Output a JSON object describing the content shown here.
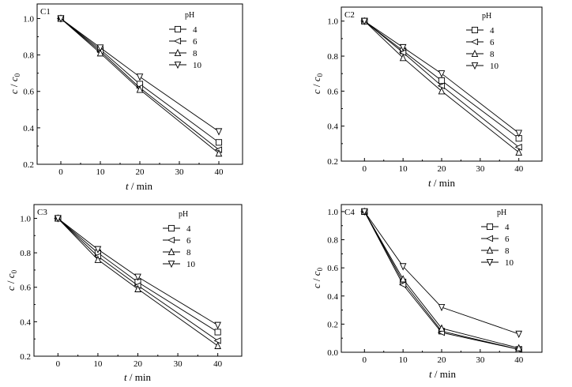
{
  "chart_data": [
    {
      "type": "line",
      "panel_label": "C1",
      "xlabel_var": "t",
      "xlabel_unit": " / min",
      "ylabel_var": "c",
      "ylabel_sep": " / ",
      "ylabel_var2": "c",
      "ylabel_sub": "0",
      "x": [
        0,
        10,
        20,
        40
      ],
      "xlim": [
        -6,
        46
      ],
      "ylim": [
        0.2,
        1.08
      ],
      "xticks": [
        "0",
        "10",
        "20",
        "30",
        "40"
      ],
      "yticks": [
        "0.2",
        "0.4",
        "0.6",
        "0.8",
        "1.0"
      ],
      "legend_title": "pH",
      "series": [
        {
          "name": "4",
          "marker": "square",
          "values": [
            1.0,
            0.83,
            0.64,
            0.32
          ]
        },
        {
          "name": "6",
          "marker": "triangle-left",
          "values": [
            1.0,
            0.82,
            0.62,
            0.28
          ]
        },
        {
          "name": "8",
          "marker": "triangle-up",
          "values": [
            1.0,
            0.81,
            0.61,
            0.26
          ]
        },
        {
          "name": "10",
          "marker": "triangle-down",
          "values": [
            1.0,
            0.84,
            0.68,
            0.38
          ]
        }
      ]
    },
    {
      "type": "line",
      "panel_label": "C2",
      "xlabel_var": "t",
      "xlabel_unit": " / min",
      "ylabel_var": "c",
      "ylabel_sep": " / ",
      "ylabel_var2": "c",
      "ylabel_sub": "0",
      "x": [
        0,
        10,
        20,
        40
      ],
      "xlim": [
        -6,
        46
      ],
      "ylim": [
        0.2,
        1.08
      ],
      "xticks": [
        "0",
        "10",
        "20",
        "30",
        "40"
      ],
      "yticks": [
        "0.2",
        "0.4",
        "0.6",
        "0.8",
        "1.0"
      ],
      "legend_title": "pH",
      "series": [
        {
          "name": "4",
          "marker": "square",
          "values": [
            1.0,
            0.83,
            0.66,
            0.33
          ]
        },
        {
          "name": "6",
          "marker": "triangle-left",
          "values": [
            1.0,
            0.82,
            0.63,
            0.28
          ]
        },
        {
          "name": "8",
          "marker": "triangle-up",
          "values": [
            1.0,
            0.79,
            0.6,
            0.25
          ]
        },
        {
          "name": "10",
          "marker": "triangle-down",
          "values": [
            1.0,
            0.85,
            0.7,
            0.36
          ]
        }
      ]
    },
    {
      "type": "line",
      "panel_label": "C3",
      "xlabel_var": "t",
      "xlabel_unit": " / min",
      "ylabel_var": "c",
      "ylabel_sep": " / ",
      "ylabel_var2": "c",
      "ylabel_sub": "0",
      "x": [
        0,
        10,
        20,
        40
      ],
      "xlim": [
        -6,
        46
      ],
      "ylim": [
        0.2,
        1.08
      ],
      "xticks": [
        "0",
        "10",
        "20",
        "30",
        "40"
      ],
      "yticks": [
        "0.2",
        "0.4",
        "0.6",
        "0.8",
        "1.0"
      ],
      "legend_title": "pH",
      "series": [
        {
          "name": "4",
          "marker": "square",
          "values": [
            1.0,
            0.8,
            0.63,
            0.34
          ]
        },
        {
          "name": "6",
          "marker": "triangle-left",
          "values": [
            1.0,
            0.78,
            0.61,
            0.29
          ]
        },
        {
          "name": "8",
          "marker": "triangle-up",
          "values": [
            1.0,
            0.76,
            0.59,
            0.26
          ]
        },
        {
          "name": "10",
          "marker": "triangle-down",
          "values": [
            1.0,
            0.82,
            0.66,
            0.38
          ]
        }
      ]
    },
    {
      "type": "line",
      "panel_label": "C4",
      "xlabel_var": "t",
      "xlabel_unit": " / min",
      "ylabel_var": "c",
      "ylabel_sep": " / ",
      "ylabel_var2": "c",
      "ylabel_sub": "0",
      "x": [
        0,
        10,
        20,
        40
      ],
      "xlim": [
        -6,
        46
      ],
      "ylim": [
        0.0,
        1.05
      ],
      "xticks": [
        "0",
        "10",
        "20",
        "30",
        "40"
      ],
      "yticks": [
        "0.0",
        "0.2",
        "0.4",
        "0.6",
        "0.8",
        "1.0"
      ],
      "legend_title": "pH",
      "series": [
        {
          "name": "4",
          "marker": "square",
          "values": [
            1.0,
            0.5,
            0.15,
            0.02
          ]
        },
        {
          "name": "6",
          "marker": "triangle-left",
          "values": [
            1.0,
            0.48,
            0.14,
            0.02
          ]
        },
        {
          "name": "8",
          "marker": "triangle-up",
          "values": [
            1.0,
            0.52,
            0.17,
            0.03
          ]
        },
        {
          "name": "10",
          "marker": "triangle-down",
          "values": [
            1.0,
            0.61,
            0.32,
            0.13
          ]
        }
      ]
    }
  ]
}
